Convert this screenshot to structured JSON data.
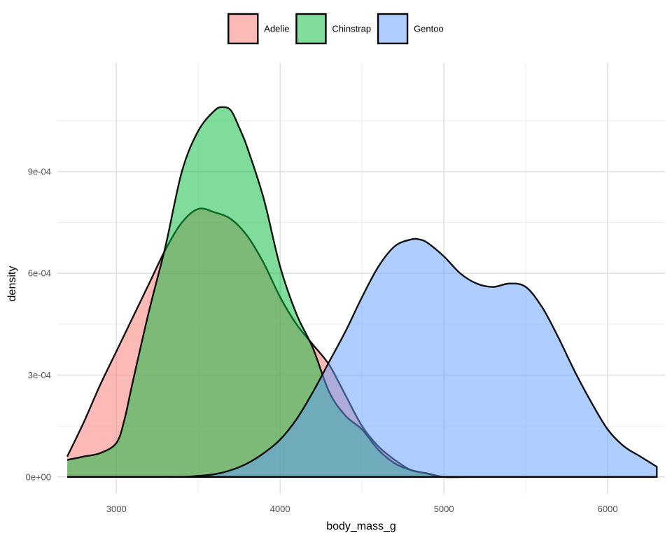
{
  "chart_data": {
    "type": "area",
    "subtype": "density",
    "title": "",
    "xlabel": "body_mass_g",
    "ylabel": "density",
    "xlim": [
      2700,
      6300
    ],
    "ylim": [
      0,
      0.00112
    ],
    "x_ticks": [
      3000,
      4000,
      5000,
      6000
    ],
    "x_tick_labels": [
      "3000",
      "4000",
      "5000",
      "6000"
    ],
    "y_ticks": [
      0,
      0.0003,
      0.0006,
      0.0009
    ],
    "y_tick_labels": [
      "0e+00",
      "3e-04",
      "6e-04",
      "9e-04"
    ],
    "grid": true,
    "legend_position": "top",
    "fill_alpha": 0.5,
    "series": [
      {
        "name": "Adelie",
        "color": "#F8766D",
        "x": [
          2700,
          2800,
          2900,
          3000,
          3100,
          3200,
          3300,
          3400,
          3500,
          3600,
          3700,
          3800,
          3900,
          4000,
          4100,
          4200,
          4300,
          4400,
          4500,
          4600,
          4700,
          4800,
          4900,
          5000,
          5100,
          5200,
          5400,
          5600,
          5800,
          6000,
          6300
        ],
        "y": [
          6e-05,
          0.00016,
          0.00027,
          0.00037,
          0.00047,
          0.00057,
          0.00067,
          0.00075,
          0.00079,
          0.00078,
          0.00076,
          0.00071,
          0.00063,
          0.00053,
          0.00045,
          0.00039,
          0.00033,
          0.00024,
          0.00015,
          9e-05,
          5e-05,
          2e-05,
          1e-05,
          0,
          0,
          0,
          0,
          0,
          0,
          0,
          0
        ]
      },
      {
        "name": "Chinstrap",
        "color": "#00BA38",
        "x": [
          2700,
          2800,
          2900,
          3000,
          3050,
          3100,
          3200,
          3300,
          3400,
          3500,
          3600,
          3650,
          3700,
          3750,
          3800,
          3900,
          4000,
          4100,
          4200,
          4300,
          4400,
          4500,
          4600,
          4700,
          4800,
          4900,
          5000,
          5200,
          5400,
          5600,
          5800,
          6000,
          6300
        ],
        "y": [
          5e-05,
          6e-05,
          7e-05,
          0.0001,
          0.00017,
          0.00028,
          0.00049,
          0.00068,
          0.0009,
          0.00102,
          0.00108,
          0.00109,
          0.00108,
          0.00103,
          0.00097,
          0.00082,
          0.00062,
          0.00048,
          0.00038,
          0.00025,
          0.00018,
          0.00014,
          8e-05,
          4e-05,
          2e-05,
          1e-05,
          0,
          0,
          0,
          0,
          0,
          0,
          0
        ]
      },
      {
        "name": "Gentoo",
        "color": "#619CFF",
        "x": [
          2700,
          3000,
          3200,
          3400,
          3500,
          3600,
          3700,
          3800,
          3900,
          4000,
          4100,
          4200,
          4300,
          4400,
          4500,
          4600,
          4700,
          4800,
          4850,
          4900,
          5000,
          5100,
          5200,
          5300,
          5400,
          5500,
          5600,
          5700,
          5800,
          5900,
          6000,
          6100,
          6200,
          6300
        ],
        "y": [
          0,
          0,
          0,
          0,
          3e-06,
          8e-06,
          2e-05,
          4e-05,
          7e-05,
          0.00011,
          0.00017,
          0.00025,
          0.00034,
          0.00043,
          0.00053,
          0.00062,
          0.00068,
          0.0007,
          0.0007,
          0.00069,
          0.00065,
          0.0006,
          0.00057,
          0.00056,
          0.00057,
          0.00056,
          0.0005,
          0.00041,
          0.00031,
          0.00022,
          0.00014,
          9e-05,
          6e-05,
          3e-05
        ]
      }
    ]
  }
}
